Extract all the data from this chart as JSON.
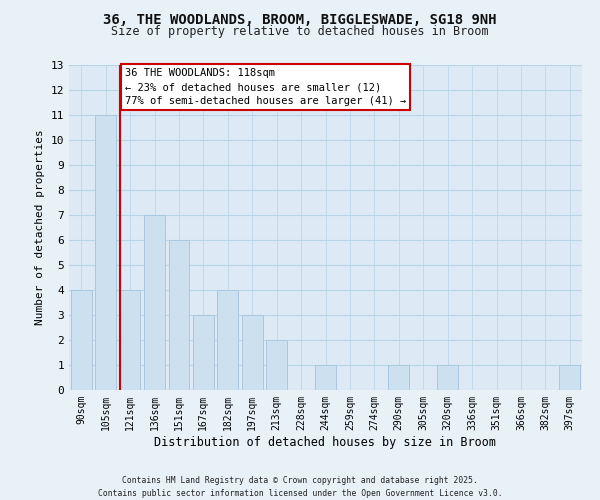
{
  "title_line1": "36, THE WOODLANDS, BROOM, BIGGLESWADE, SG18 9NH",
  "title_line2": "Size of property relative to detached houses in Broom",
  "xlabel": "Distribution of detached houses by size in Broom",
  "ylabel": "Number of detached properties",
  "bar_labels": [
    "90sqm",
    "105sqm",
    "121sqm",
    "136sqm",
    "151sqm",
    "167sqm",
    "182sqm",
    "197sqm",
    "213sqm",
    "228sqm",
    "244sqm",
    "259sqm",
    "274sqm",
    "290sqm",
    "305sqm",
    "320sqm",
    "336sqm",
    "351sqm",
    "366sqm",
    "382sqm",
    "397sqm"
  ],
  "bar_values": [
    4,
    11,
    4,
    7,
    6,
    3,
    4,
    3,
    2,
    0,
    1,
    0,
    0,
    1,
    0,
    1,
    0,
    0,
    0,
    0,
    1
  ],
  "bar_color": "#cce0f0",
  "bar_edgecolor": "#aac8e0",
  "redline_index": 2,
  "ylim": [
    0,
    13
  ],
  "yticks": [
    0,
    1,
    2,
    3,
    4,
    5,
    6,
    7,
    8,
    9,
    10,
    11,
    12,
    13
  ],
  "grid_color": "#b8d4e8",
  "annotation_title": "36 THE WOODLANDS: 118sqm",
  "annotation_line2": "← 23% of detached houses are smaller (12)",
  "annotation_line3": "77% of semi-detached houses are larger (41) →",
  "annotation_box_edgecolor": "#cc0000",
  "footer_line1": "Contains HM Land Registry data © Crown copyright and database right 2025.",
  "footer_line2": "Contains public sector information licensed under the Open Government Licence v3.0.",
  "fig_bg_color": "#e8f0f8",
  "plot_bg_color": "#ddeaf5",
  "title_fontsize": 10,
  "subtitle_fontsize": 8.5
}
